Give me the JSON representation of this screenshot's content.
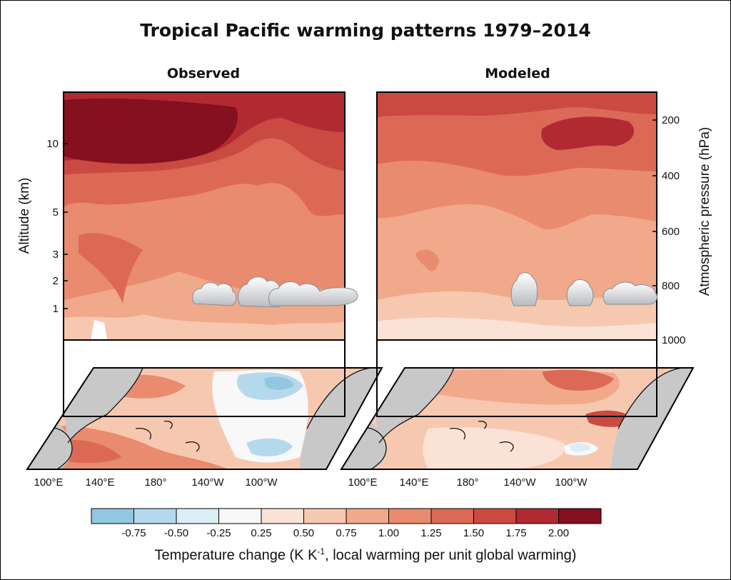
{
  "chart_data": {
    "type": "heatmap",
    "title": "Tropical Pacific warming patterns 1979–2014",
    "panels": [
      {
        "name": "Observed",
        "description": "Vertical cross-section: warming strongest aloft (>2.00 near 200 hPa over the western/central Pacific), weaker below; map shows cooling (-0.25 to -0.75) in the central-eastern Pacific.",
        "max_level": 2.0,
        "min_level": -0.75
      },
      {
        "name": "Modeled",
        "description": "Vertical cross-section: moderate warming increasing with height (about 1.25-1.75 aloft); map shows broad warming with weak cooling near 120°W south of equator.",
        "max_level": 1.75,
        "min_level": -0.25
      }
    ],
    "y_left": {
      "label": "Altitude (km)",
      "ticks": [
        "10",
        "5",
        "3",
        "2",
        "1"
      ]
    },
    "y_right": {
      "label": "Atmospheric pressure (hPa)",
      "ticks": [
        "200",
        "400",
        "600",
        "800",
        "1000"
      ]
    },
    "x_ticks": [
      "100°E",
      "140°E",
      "180°",
      "140°W",
      "100°W"
    ],
    "colorbar": {
      "label": "Temperature change (K K",
      "label_sup": "-1",
      "label_tail": ", local warming per unit global warming)",
      "ticks": [
        "-0.75",
        "-0.50",
        "-0.25",
        "0.25",
        "0.50",
        "0.75",
        "1.00",
        "1.25",
        "1.50",
        "1.75",
        "2.00"
      ],
      "colors": [
        "#93c6e0",
        "#b5d9ec",
        "#dbeef7",
        "#f8f8f8",
        "#fbe2d6",
        "#f7c8b0",
        "#f0a98a",
        "#e98b6e",
        "#dc6956",
        "#ca4a42",
        "#b12a32",
        "#85101f"
      ]
    }
  }
}
